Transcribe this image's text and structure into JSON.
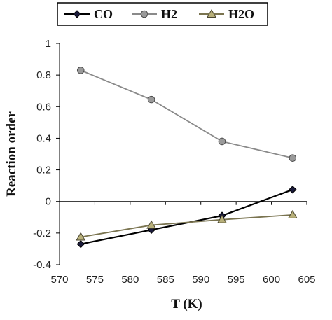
{
  "chart_data": {
    "type": "line",
    "title": "",
    "xlabel": "T (K)",
    "ylabel": "Reaction order",
    "x": [
      573,
      583,
      593,
      603
    ],
    "xlim": [
      570,
      605
    ],
    "ylim": [
      -0.4,
      1
    ],
    "xticks": [
      570,
      575,
      580,
      585,
      590,
      595,
      600,
      605
    ],
    "yticks": [
      -0.4,
      -0.2,
      0,
      0.2,
      0.4,
      0.6,
      0.8,
      1
    ],
    "xtick_labels": [
      "570",
      "575",
      "580",
      "585",
      "590",
      "595",
      "600",
      "605"
    ],
    "ytick_labels": [
      "-0.4",
      "-0.2",
      "0",
      "0.2",
      "0.4",
      "0.6",
      "0.8",
      "1"
    ],
    "grid": false,
    "legend_position": "top",
    "series": [
      {
        "name": "CO",
        "values": [
          -0.27,
          -0.18,
          -0.09,
          0.075
        ],
        "color": "#000000",
        "marker": "diamond",
        "marker_fill": "#1a1a3a"
      },
      {
        "name": "H2",
        "values": [
          0.83,
          0.645,
          0.38,
          0.275
        ],
        "color": "#8a8a8a",
        "marker": "circle",
        "marker_fill": "#9a9a9a"
      },
      {
        "name": "H2O",
        "values": [
          -0.225,
          -0.15,
          -0.115,
          -0.085
        ],
        "color": "#7a7450",
        "marker": "triangle",
        "marker_fill": "#b8b07a"
      }
    ]
  }
}
